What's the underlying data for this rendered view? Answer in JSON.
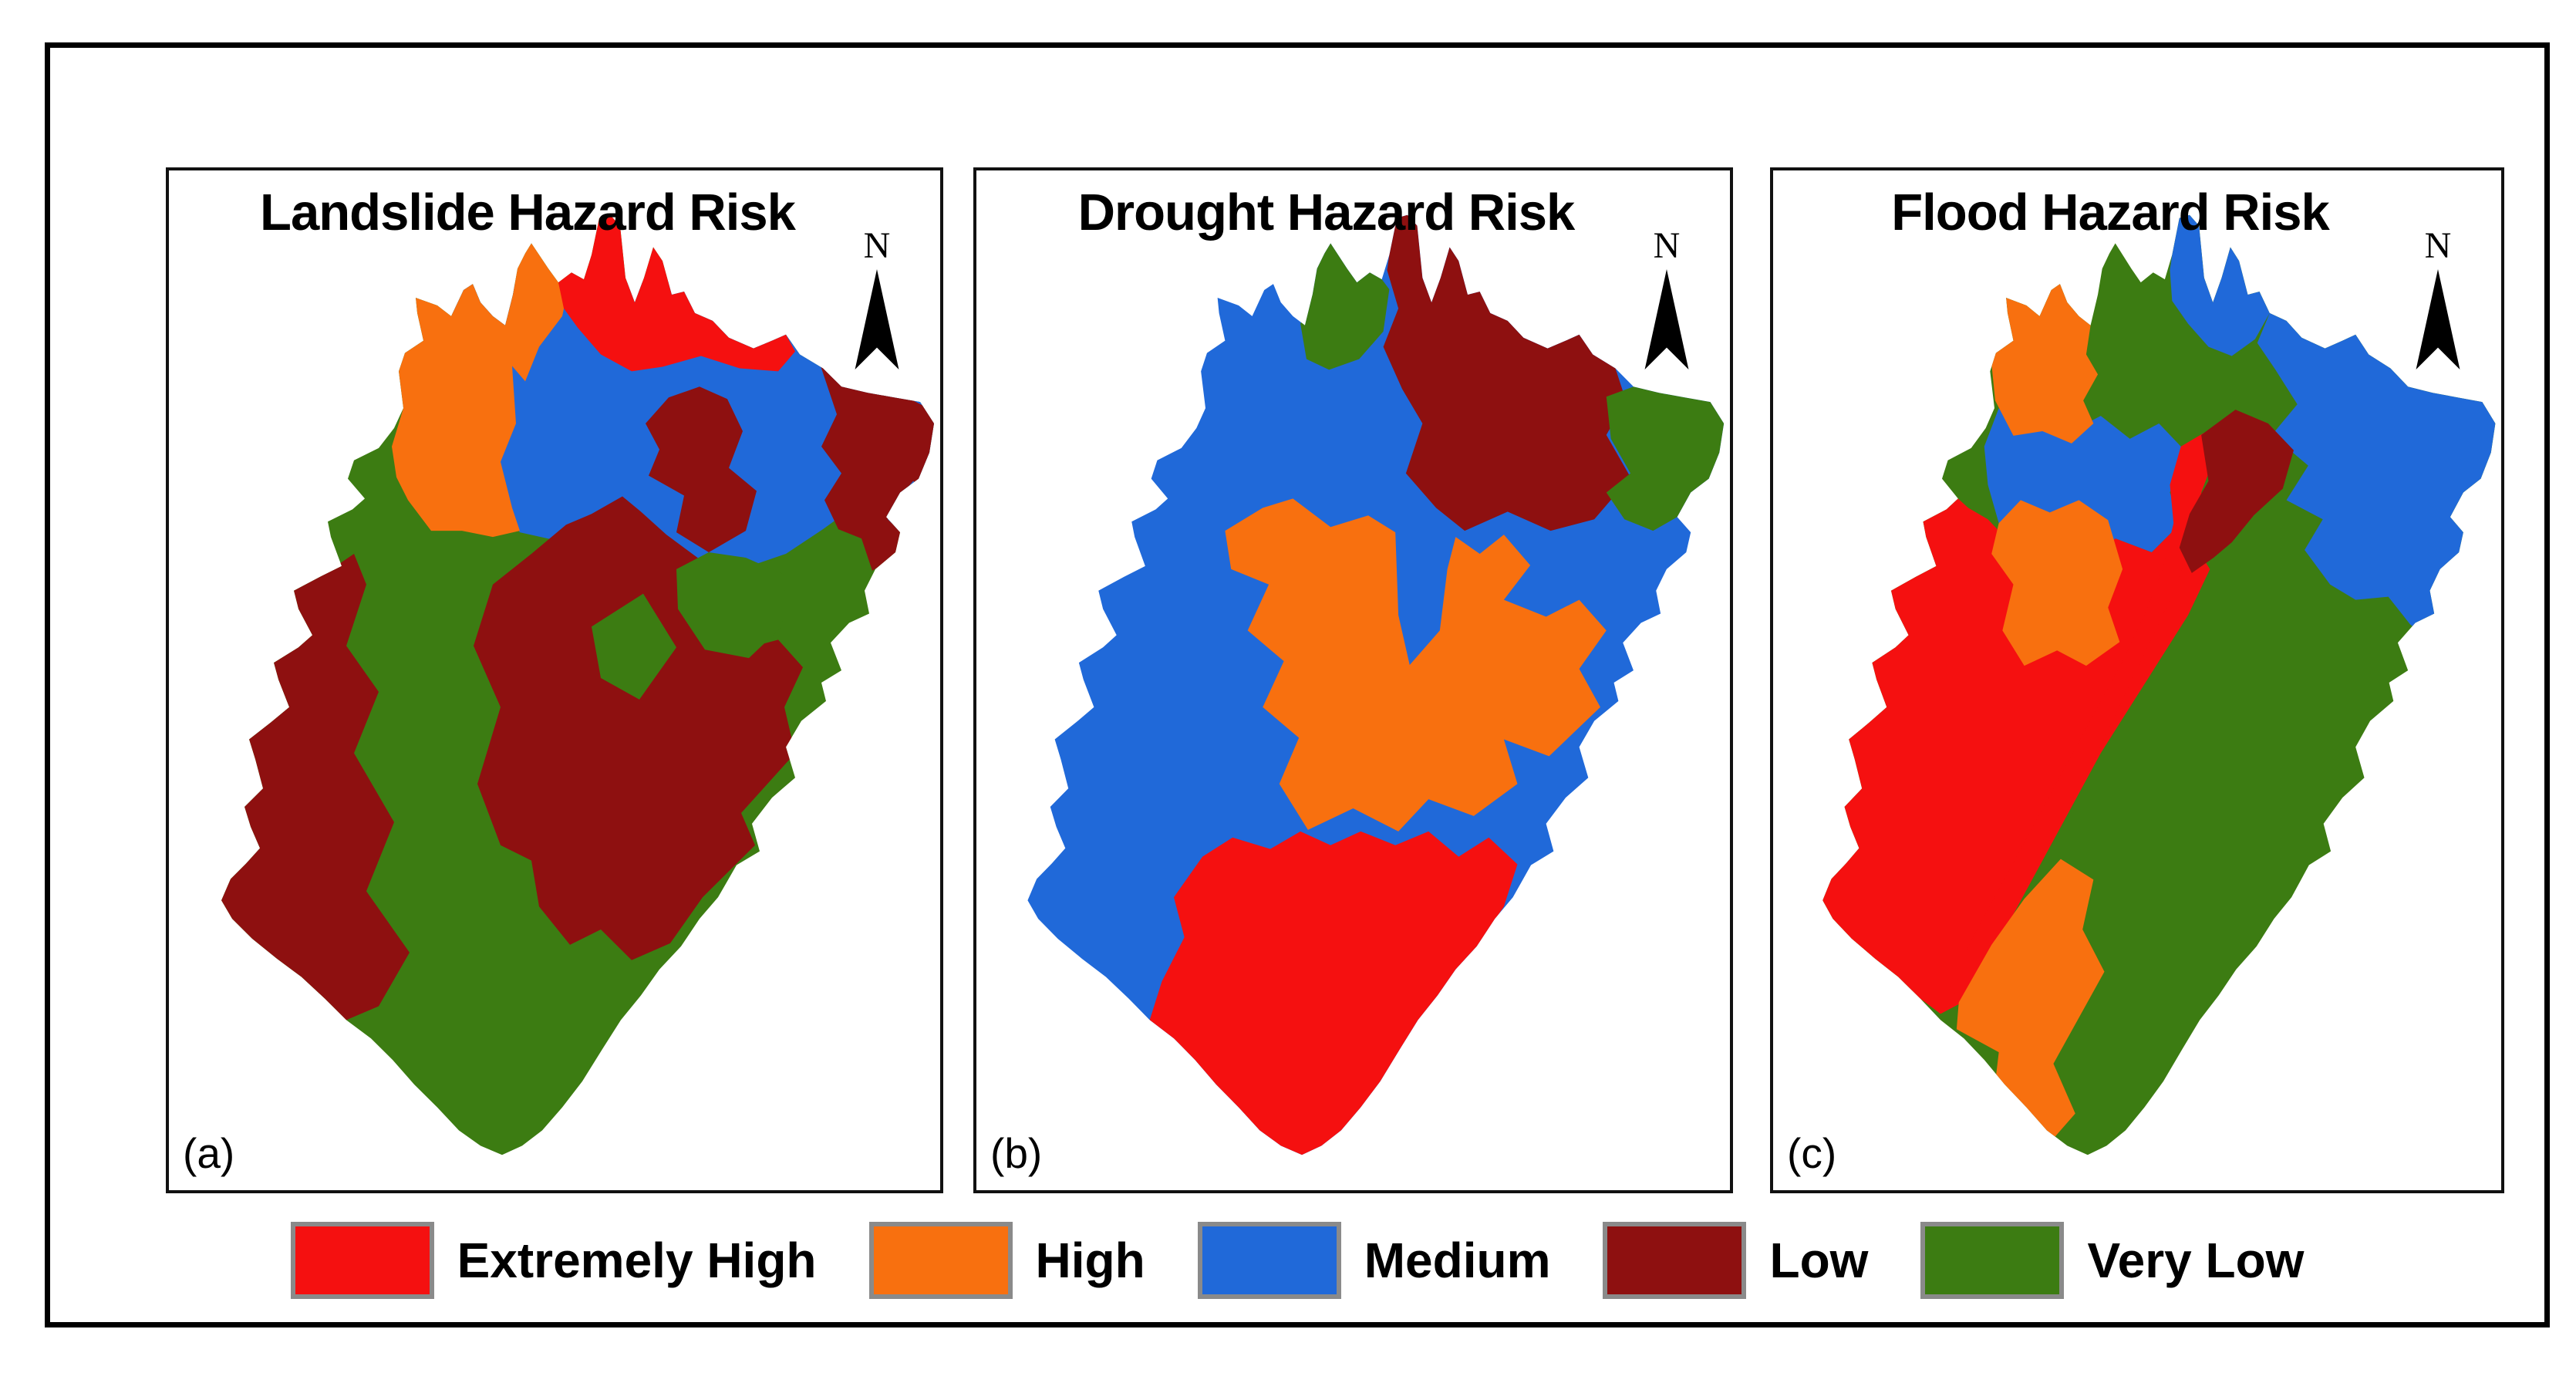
{
  "figure": {
    "risk_colors": {
      "extremely-high": "#f51010",
      "high": "#f8700f",
      "medium": "#2069d9",
      "low": "#8e1010",
      "very-low": "#3c7c12"
    },
    "panels": [
      {
        "id": "a",
        "title": "Landslide Hazard Risk",
        "corner_label": "(a)",
        "north_label": "N",
        "regions": [
          "very-low",
          "medium",
          "low",
          "low",
          "low",
          "very-low",
          "very-low",
          "low",
          "high",
          "extremely-high"
        ]
      },
      {
        "id": "b",
        "title": "Drought Hazard Risk",
        "corner_label": "(b)",
        "north_label": "N",
        "regions": [
          "medium",
          "low",
          "very-low",
          "very-low",
          "high",
          "extremely-high"
        ]
      },
      {
        "id": "c",
        "title": "Flood Hazard Risk",
        "corner_label": "(c)",
        "north_label": "N",
        "regions": [
          "very-low",
          "medium",
          "medium",
          "medium",
          "extremely-high",
          "extremely-high",
          "high",
          "high",
          "high",
          "low"
        ]
      }
    ],
    "legend": {
      "swatch_border_color": "#8a8a8a",
      "items": [
        {
          "label": "Extremely High",
          "class": "extremely-high"
        },
        {
          "label": "High",
          "class": "high"
        },
        {
          "label": "Medium",
          "class": "medium"
        },
        {
          "label": "Low",
          "class": "low"
        },
        {
          "label": "Very Low",
          "class": "very-low"
        }
      ]
    }
  }
}
